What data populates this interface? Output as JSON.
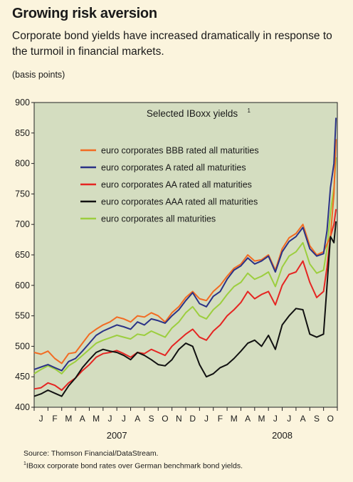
{
  "header": {
    "title": "Growing risk aversion",
    "subtitle": "Corporate bond  yields have increased dramatically in response to the turmoil in financial markets.",
    "units": "(basis points)"
  },
  "footer": {
    "source": "Source: Thomson Financial/DataStream.",
    "footnote_mark": "1",
    "footnote": "IBoxx corporate bond rates over German benchmark bond yields."
  },
  "chart_data": {
    "type": "line",
    "title": "Selected IBoxx yields",
    "title_sup": "1",
    "xlabel": "",
    "ylabel": "",
    "ylim": [
      400,
      900
    ],
    "yticks": [
      400,
      450,
      500,
      550,
      600,
      650,
      700,
      750,
      800,
      850,
      900
    ],
    "xlim": [
      0,
      22
    ],
    "xticks": [
      "J",
      "F",
      "M",
      "A",
      "M",
      "J",
      "J",
      "A",
      "S",
      "O",
      "N",
      "D",
      "J",
      "F",
      "M",
      "A",
      "M",
      "J",
      "J",
      "A",
      "S",
      "O"
    ],
    "years": [
      {
        "label": "2007",
        "month": 6
      },
      {
        "label": "2008",
        "month": 18
      }
    ],
    "grid": false,
    "legend_position": "top-left",
    "plot_background": "#d4ddc0",
    "series": [
      {
        "name": "euro corporates BBB rated all maturities",
        "color": "#f26b22",
        "x": [
          0,
          0.5,
          1,
          1.5,
          2,
          2.5,
          3,
          3.5,
          4,
          4.5,
          5,
          5.5,
          6,
          6.5,
          7,
          7.5,
          8,
          8.5,
          9,
          9.5,
          10,
          10.5,
          11,
          11.5,
          12,
          12.5,
          13,
          13.5,
          14,
          14.5,
          15,
          15.5,
          16,
          16.5,
          17,
          17.5,
          18,
          18.5,
          19,
          19.5,
          20,
          20.5,
          21,
          21.25,
          21.5,
          21.75,
          21.9
        ],
        "values": [
          490,
          487,
          492,
          480,
          472,
          488,
          490,
          505,
          520,
          528,
          535,
          540,
          548,
          545,
          540,
          550,
          548,
          555,
          550,
          540,
          555,
          565,
          580,
          590,
          578,
          575,
          590,
          600,
          615,
          628,
          635,
          650,
          640,
          642,
          650,
          625,
          660,
          678,
          685,
          700,
          665,
          650,
          655,
          668,
          680,
          750,
          840
        ]
      },
      {
        "name": "euro corporates A rated all maturities",
        "color": "#2b3286",
        "x": [
          0,
          0.5,
          1,
          1.5,
          2,
          2.5,
          3,
          3.5,
          4,
          4.5,
          5,
          5.5,
          6,
          6.5,
          7,
          7.5,
          8,
          8.5,
          9,
          9.5,
          10,
          10.5,
          11,
          11.5,
          12,
          12.5,
          13,
          13.5,
          14,
          14.5,
          15,
          15.5,
          16,
          16.5,
          17,
          17.5,
          18,
          18.5,
          19,
          19.5,
          20,
          20.5,
          21,
          21.25,
          21.5,
          21.75,
          21.9
        ],
        "values": [
          462,
          466,
          470,
          465,
          460,
          475,
          480,
          492,
          505,
          518,
          525,
          530,
          535,
          532,
          528,
          540,
          535,
          545,
          542,
          538,
          550,
          560,
          575,
          588,
          570,
          565,
          582,
          590,
          610,
          625,
          632,
          645,
          635,
          640,
          648,
          622,
          655,
          672,
          680,
          695,
          660,
          648,
          652,
          690,
          760,
          800,
          875
        ]
      },
      {
        "name": "euro corporates AA rated all maturities",
        "color": "#e52522",
        "x": [
          0,
          0.5,
          1,
          1.5,
          2,
          2.5,
          3,
          3.5,
          4,
          4.5,
          5,
          5.5,
          6,
          6.5,
          7,
          7.5,
          8,
          8.5,
          9,
          9.5,
          10,
          10.5,
          11,
          11.5,
          12,
          12.5,
          13,
          13.5,
          14,
          14.5,
          15,
          15.5,
          16,
          16.5,
          17,
          17.5,
          18,
          18.5,
          19,
          19.5,
          20,
          20.5,
          21,
          21.25,
          21.5,
          21.75,
          21.9
        ],
        "values": [
          430,
          432,
          440,
          436,
          428,
          440,
          448,
          460,
          470,
          482,
          488,
          490,
          493,
          488,
          482,
          490,
          488,
          495,
          490,
          485,
          500,
          510,
          520,
          528,
          515,
          510,
          525,
          535,
          550,
          560,
          572,
          590,
          578,
          585,
          590,
          568,
          600,
          618,
          622,
          640,
          605,
          580,
          590,
          630,
          680,
          700,
          725
        ]
      },
      {
        "name": "euro corporates AAA rated all maturities",
        "color": "#111111",
        "x": [
          0,
          0.5,
          1,
          1.5,
          2,
          2.5,
          3,
          3.5,
          4,
          4.5,
          5,
          5.5,
          6,
          6.5,
          7,
          7.5,
          8,
          8.5,
          9,
          9.5,
          10,
          10.5,
          11,
          11.5,
          12,
          12.5,
          13,
          13.5,
          14,
          14.5,
          15,
          15.5,
          16,
          16.5,
          17,
          17.5,
          18,
          18.5,
          19,
          19.5,
          20,
          20.5,
          21,
          21.25,
          21.5,
          21.75,
          21.9
        ],
        "values": [
          418,
          422,
          428,
          423,
          418,
          435,
          448,
          465,
          478,
          490,
          495,
          492,
          490,
          485,
          478,
          490,
          485,
          478,
          470,
          468,
          478,
          495,
          505,
          500,
          470,
          450,
          455,
          465,
          470,
          480,
          492,
          505,
          510,
          500,
          518,
          495,
          535,
          550,
          562,
          560,
          520,
          515,
          520,
          600,
          680,
          670,
          705
        ]
      },
      {
        "name": "euro corporates all maturities",
        "color": "#9cce3e",
        "x": [
          0,
          0.5,
          1,
          1.5,
          2,
          2.5,
          3,
          3.5,
          4,
          4.5,
          5,
          5.5,
          6,
          6.5,
          7,
          7.5,
          8,
          8.5,
          9,
          9.5,
          10,
          10.5,
          11,
          11.5,
          12,
          12.5,
          13,
          13.5,
          14,
          14.5,
          15,
          15.5,
          16,
          16.5,
          17,
          17.5,
          18,
          18.5,
          19,
          19.5,
          20,
          20.5,
          21,
          21.25,
          21.5,
          21.75,
          21.9
        ],
        "values": [
          455,
          462,
          468,
          463,
          455,
          468,
          475,
          485,
          495,
          505,
          510,
          514,
          518,
          515,
          512,
          520,
          518,
          525,
          520,
          515,
          530,
          540,
          555,
          565,
          550,
          545,
          560,
          570,
          585,
          598,
          605,
          620,
          610,
          615,
          622,
          598,
          630,
          648,
          655,
          670,
          635,
          620,
          625,
          660,
          720,
          760,
          810
        ]
      }
    ]
  }
}
